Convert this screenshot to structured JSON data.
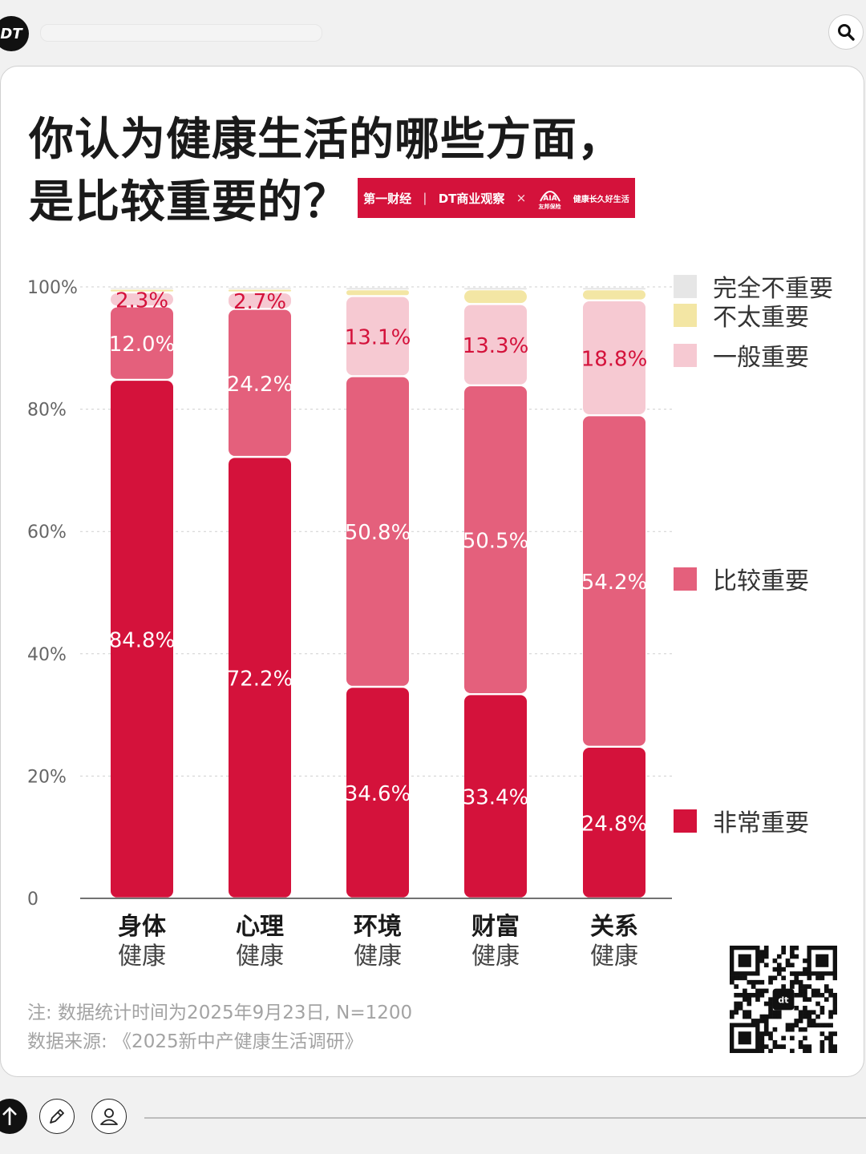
{
  "header": {
    "logo_text": "DT",
    "search_icon": "search-icon"
  },
  "title": {
    "line1": "你认为健康生活的哪些方面，",
    "line2": "是比较重要的？"
  },
  "brand": {
    "partner1": "第一财经",
    "partner2": "DT商业观察",
    "separator": "×",
    "partner3_slogan": "健康长久好生活",
    "partner3_name": "友邦保险"
  },
  "colors": {
    "very_important": "#d4123b",
    "fairly_important": "#e4607c",
    "average": "#f6c9d2",
    "not_very": "#f3e6a4",
    "not_at_all": "#e6e6e6"
  },
  "chart_data": {
    "type": "bar",
    "stacked": true,
    "categories": [
      [
        "身体",
        "健康"
      ],
      [
        "心理",
        "健康"
      ],
      [
        "环境",
        "健康"
      ],
      [
        "财富",
        "健康"
      ],
      [
        "关系",
        "健康"
      ]
    ],
    "series": [
      {
        "name": "非常重要",
        "values": [
          84.8,
          72.2,
          34.6,
          33.4,
          24.8
        ],
        "labels": [
          "84.8%",
          "72.2%",
          "34.6%",
          "33.4%",
          "24.8%"
        ]
      },
      {
        "name": "比较重要",
        "values": [
          12.0,
          24.2,
          50.8,
          50.5,
          54.2
        ],
        "labels": [
          "12.0%",
          "24.2%",
          "50.8%",
          "50.5%",
          "54.2%"
        ]
      },
      {
        "name": "一般重要",
        "values": [
          2.3,
          2.7,
          13.1,
          13.3,
          18.8
        ],
        "labels": [
          "2.3%",
          "2.7%",
          "13.1%",
          "13.3%",
          "18.8%"
        ]
      },
      {
        "name": "不太重要",
        "values": [
          0.6,
          0.6,
          1.1,
          2.4,
          1.8
        ],
        "labels": [
          "",
          "",
          "",
          "",
          ""
        ]
      },
      {
        "name": "完全不重要",
        "values": [
          0.3,
          0.3,
          0.4,
          0.4,
          0.4
        ],
        "labels": [
          "",
          "",
          "",
          "",
          ""
        ]
      }
    ],
    "y_ticks": [
      "0",
      "20%",
      "40%",
      "60%",
      "80%",
      "100%"
    ],
    "y_tick_values": [
      0,
      20,
      40,
      60,
      80,
      100
    ],
    "ylim": [
      0,
      100
    ],
    "grid": true,
    "legend_position": "right"
  },
  "footer": {
    "note": "注: 数据统计时间为2025年9月23日, N=1200",
    "source": "数据来源: 《2025新中产健康生活调研》"
  },
  "toolbar": {
    "icons": [
      "upload-icon",
      "edit-icon",
      "user-icon"
    ]
  }
}
